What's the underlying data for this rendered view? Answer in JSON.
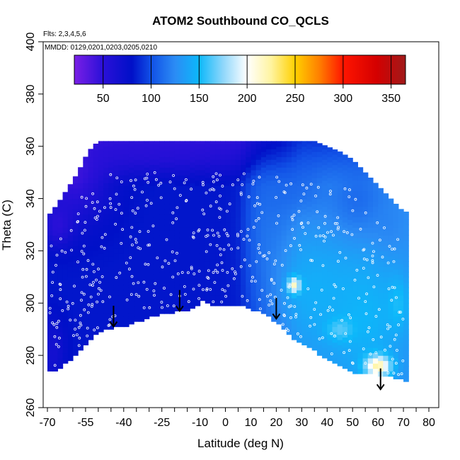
{
  "chart_data": {
    "type": "heatmap",
    "title": "ATOM2 Southbound CO_QCLS",
    "flights_note": "Flts: 2,3,4,5,6",
    "dates_note": "MMDD: 0129,0201,0203,0205,0210",
    "xlabel": "Latitude (deg N)",
    "ylabel": "Theta (C)",
    "xlim": [
      -70,
      80
    ],
    "ylim": [
      260,
      400
    ],
    "x_tick_labels": [
      "-70",
      "-55",
      "-40",
      "-25",
      "-10",
      "0",
      "10",
      "20",
      "30",
      "40",
      "50",
      "60",
      "70",
      "80"
    ],
    "x_tick_values": [
      -70,
      -55,
      -40,
      -25,
      -10,
      0,
      10,
      20,
      30,
      40,
      50,
      60,
      70,
      80
    ],
    "y_tick_labels": [
      "260",
      "280",
      "300",
      "320",
      "340",
      "360",
      "380",
      "400"
    ],
    "y_tick_values": [
      260,
      280,
      300,
      320,
      340,
      360,
      380,
      400
    ],
    "colorbar": {
      "range": [
        20,
        365
      ],
      "tick_labels": [
        "50",
        "100",
        "150",
        "200",
        "250",
        "300",
        "350"
      ],
      "tick_values": [
        50,
        100,
        150,
        200,
        250,
        300,
        350
      ],
      "colors": [
        {
          "v": 20,
          "c": "#7a1fe6"
        },
        {
          "v": 50,
          "c": "#2a10d8"
        },
        {
          "v": 80,
          "c": "#0010c8"
        },
        {
          "v": 100,
          "c": "#1150e6"
        },
        {
          "v": 125,
          "c": "#2b8cf5"
        },
        {
          "v": 150,
          "c": "#0cb8fa"
        },
        {
          "v": 175,
          "c": "#8fd7fb"
        },
        {
          "v": 200,
          "c": "#ffffff"
        },
        {
          "v": 225,
          "c": "#fff4a0"
        },
        {
          "v": 250,
          "c": "#ffd000"
        },
        {
          "v": 275,
          "c": "#ff8000"
        },
        {
          "v": 300,
          "c": "#ff1500"
        },
        {
          "v": 335,
          "c": "#d40000"
        },
        {
          "v": 365,
          "c": "#a01a1a"
        }
      ]
    },
    "field": {
      "columns": [
        {
          "lat": -70.0,
          "top": 333,
          "bottom": 274
        },
        {
          "lat": -66.0,
          "top": 338,
          "bottom": 274
        },
        {
          "lat": -62.0,
          "top": 344,
          "bottom": 278
        },
        {
          "lat": -58.0,
          "top": 350,
          "bottom": 281
        },
        {
          "lat": -54.0,
          "top": 358,
          "bottom": 286
        },
        {
          "lat": -50.0,
          "top": 362,
          "bottom": 289
        },
        {
          "lat": -44.0,
          "top": 362,
          "bottom": 291
        },
        {
          "lat": -38.0,
          "top": 362,
          "bottom": 292
        },
        {
          "lat": -32.0,
          "top": 362,
          "bottom": 294
        },
        {
          "lat": -26.0,
          "top": 362,
          "bottom": 296
        },
        {
          "lat": -20.0,
          "top": 362,
          "bottom": 297
        },
        {
          "lat": -14.0,
          "top": 362,
          "bottom": 298
        },
        {
          "lat": -9.0,
          "top": 362,
          "bottom": 301
        },
        {
          "lat": -4.0,
          "top": 362,
          "bottom": 299
        },
        {
          "lat": 2.0,
          "top": 362,
          "bottom": 299
        },
        {
          "lat": 8.0,
          "top": 362,
          "bottom": 299
        },
        {
          "lat": 13.0,
          "top": 362,
          "bottom": 297
        },
        {
          "lat": 17.0,
          "top": 362,
          "bottom": 295
        },
        {
          "lat": 21.0,
          "top": 362,
          "bottom": 292
        },
        {
          "lat": 25.0,
          "top": 362,
          "bottom": 288
        },
        {
          "lat": 30.0,
          "top": 362,
          "bottom": 285
        },
        {
          "lat": 35.0,
          "top": 362,
          "bottom": 282
        },
        {
          "lat": 40.0,
          "top": 360,
          "bottom": 279
        },
        {
          "lat": 45.0,
          "top": 358,
          "bottom": 276
        },
        {
          "lat": 50.0,
          "top": 355,
          "bottom": 274
        },
        {
          "lat": 55.0,
          "top": 350,
          "bottom": 273
        },
        {
          "lat": 60.0,
          "top": 345,
          "bottom": 273
        },
        {
          "lat": 65.0,
          "top": 340,
          "bottom": 272
        },
        {
          "lat": 70.0,
          "top": 335,
          "bottom": 271
        },
        {
          "lat": 72.0,
          "top": 335,
          "bottom": 270
        }
      ],
      "features": [
        {
          "lat": -60,
          "theta": 350,
          "rlat": 14,
          "rth": 18,
          "value": 40,
          "w": 0.9
        },
        {
          "lat": -66,
          "theta": 330,
          "rlat": 6,
          "rth": 8,
          "value": 45,
          "w": 0.8
        },
        {
          "lat": -68,
          "theta": 282,
          "rlat": 5,
          "rth": 12,
          "value": 55,
          "w": 0.6
        },
        {
          "lat": -30,
          "theta": 358,
          "rlat": 40,
          "rth": 6,
          "value": 50,
          "w": 0.7
        },
        {
          "lat": 15,
          "theta": 330,
          "rlat": 8,
          "rth": 28,
          "value": 120,
          "w": 0.6
        },
        {
          "lat": 30,
          "theta": 345,
          "rlat": 10,
          "rth": 14,
          "value": 95,
          "w": 0.5
        },
        {
          "lat": 35,
          "theta": 305,
          "rlat": 16,
          "rth": 22,
          "value": 145,
          "w": 0.9
        },
        {
          "lat": 55,
          "theta": 295,
          "rlat": 16,
          "rth": 25,
          "value": 150,
          "w": 0.9
        },
        {
          "lat": 52,
          "theta": 340,
          "rlat": 12,
          "rth": 14,
          "value": 95,
          "w": 0.5
        },
        {
          "lat": 27,
          "theta": 307,
          "rlat": 2.5,
          "rth": 3,
          "value": 215,
          "w": 1.0
        },
        {
          "lat": 45,
          "theta": 290,
          "rlat": 5,
          "rth": 4,
          "value": 170,
          "w": 0.8
        },
        {
          "lat": 60,
          "theta": 276,
          "rlat": 5,
          "rth": 4,
          "value": 225,
          "w": 1.0
        },
        {
          "lat": 68,
          "theta": 300,
          "rlat": 4,
          "rth": 10,
          "value": 160,
          "w": 0.7
        },
        {
          "lat": 64,
          "theta": 330,
          "rlat": 7,
          "rth": 10,
          "value": 120,
          "w": 0.6
        }
      ]
    },
    "sample_points": {
      "count": 520,
      "seed": 7
    },
    "arrows": [
      {
        "lat": -44,
        "theta": 297
      },
      {
        "lat": -18,
        "theta": 303
      },
      {
        "lat": 20,
        "theta": 300
      },
      {
        "lat": 61,
        "theta": 273
      }
    ]
  }
}
